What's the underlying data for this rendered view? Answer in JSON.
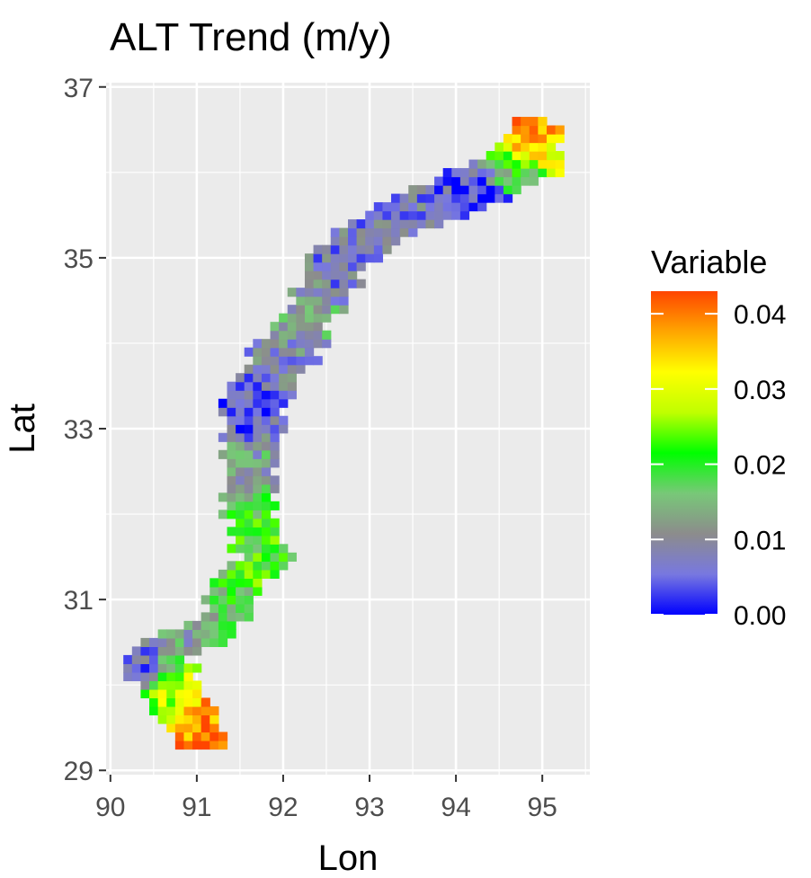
{
  "chart_data": {
    "type": "heatmap",
    "title": "ALT Trend (m/y)",
    "xlabel": "Lon",
    "ylabel": "Lat",
    "xlim": [
      89.95,
      95.55
    ],
    "ylim": [
      28.95,
      37.05
    ],
    "x_ticks": [
      90,
      91,
      92,
      93,
      94,
      95
    ],
    "y_ticks": [
      29,
      31,
      33,
      35,
      37
    ],
    "x_tick_labels": [
      "90",
      "91",
      "92",
      "93",
      "94",
      "95"
    ],
    "y_tick_labels": [
      "29",
      "31",
      "33",
      "35",
      "37"
    ],
    "grid": true,
    "cell_size_deg": 0.1,
    "legend": {
      "title": "Variable",
      "position": "right",
      "min": 0.0,
      "max": 0.043,
      "ticks": [
        0.0,
        0.01,
        0.02,
        0.03,
        0.04
      ],
      "tick_labels": [
        "0.00",
        "0.01",
        "0.02",
        "0.03",
        "0.04"
      ]
    },
    "colors": {
      "panel_background": "#ebebeb",
      "grid": "#ffffff",
      "scale": [
        "#0000ff",
        "#7878e0",
        "#8c8c8c",
        "#78c878",
        "#00ff00",
        "#c0ff00",
        "#ffff00",
        "#ffa500",
        "#ff4500"
      ]
    },
    "centerline": [
      [
        29.45,
        91.0
      ],
      [
        29.85,
        90.75
      ],
      [
        30.3,
        90.55
      ],
      [
        30.55,
        90.9
      ],
      [
        30.75,
        91.3
      ],
      [
        31.2,
        91.5
      ],
      [
        31.5,
        91.8
      ],
      [
        31.75,
        91.7
      ],
      [
        32.2,
        91.6
      ],
      [
        32.75,
        91.6
      ],
      [
        33.25,
        91.65
      ],
      [
        33.75,
        91.95
      ],
      [
        34.25,
        92.25
      ],
      [
        34.75,
        92.55
      ],
      [
        35.2,
        92.9
      ],
      [
        35.45,
        93.4
      ],
      [
        35.7,
        93.9
      ],
      [
        35.95,
        94.5
      ],
      [
        36.3,
        94.85
      ],
      [
        36.55,
        94.9
      ]
    ],
    "halfwidth_lon": [
      [
        29.3,
        0.28
      ],
      [
        29.8,
        0.36
      ],
      [
        30.2,
        0.38
      ],
      [
        30.5,
        0.45
      ],
      [
        30.8,
        0.3
      ],
      [
        31.2,
        0.25
      ],
      [
        31.5,
        0.32
      ],
      [
        31.8,
        0.28
      ],
      [
        32.5,
        0.3
      ],
      [
        33.3,
        0.35
      ],
      [
        34.0,
        0.38
      ],
      [
        34.6,
        0.32
      ],
      [
        35.2,
        0.42
      ],
      [
        35.6,
        0.62
      ],
      [
        36.0,
        0.65
      ],
      [
        36.35,
        0.35
      ],
      [
        36.65,
        0.22
      ]
    ],
    "anchors": [
      {
        "lat": 29.6,
        "lon": 91.05,
        "value": 0.038
      },
      {
        "lat": 29.5,
        "lon": 91.25,
        "value": 0.042
      },
      {
        "lat": 29.9,
        "lon": 90.8,
        "value": 0.028
      },
      {
        "lat": 30.2,
        "lon": 90.3,
        "value": 0.005
      },
      {
        "lat": 30.6,
        "lon": 90.95,
        "value": 0.012
      },
      {
        "lat": 31.0,
        "lon": 91.4,
        "value": 0.018
      },
      {
        "lat": 31.35,
        "lon": 91.85,
        "value": 0.022
      },
      {
        "lat": 31.9,
        "lon": 91.6,
        "value": 0.02
      },
      {
        "lat": 32.6,
        "lon": 91.55,
        "value": 0.012
      },
      {
        "lat": 33.2,
        "lon": 91.55,
        "value": 0.004
      },
      {
        "lat": 33.8,
        "lon": 91.9,
        "value": 0.009
      },
      {
        "lat": 34.3,
        "lon": 92.3,
        "value": 0.013
      },
      {
        "lat": 34.9,
        "lon": 92.7,
        "value": 0.007
      },
      {
        "lat": 35.35,
        "lon": 93.3,
        "value": 0.008
      },
      {
        "lat": 35.65,
        "lon": 94.1,
        "value": 0.005
      },
      {
        "lat": 35.7,
        "lon": 94.3,
        "value": 0.0
      },
      {
        "lat": 35.95,
        "lon": 94.7,
        "value": 0.018
      },
      {
        "lat": 36.3,
        "lon": 94.85,
        "value": 0.033
      },
      {
        "lat": 36.45,
        "lon": 94.85,
        "value": 0.038
      }
    ]
  }
}
